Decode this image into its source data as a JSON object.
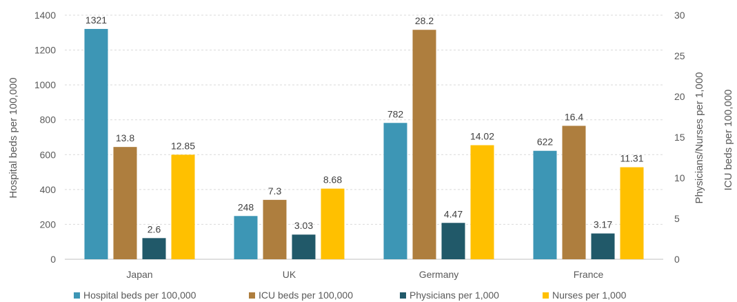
{
  "chart_data": {
    "type": "bar",
    "categories": [
      "Japan",
      "UK",
      "Germany",
      "France"
    ],
    "left_axis": {
      "title": "Hospital beds per 100,000",
      "ylim": [
        0,
        1400
      ],
      "ticks": [
        "0",
        "200",
        "400",
        "600",
        "800",
        "1000",
        "1200",
        "1400"
      ]
    },
    "right_axis": {
      "title": "Physicians/Nurses per 1,000",
      "title2": "ICU beds per 100,000",
      "ylim": [
        0,
        30
      ],
      "ticks": [
        "0",
        "5",
        "10",
        "15",
        "20",
        "25",
        "30"
      ]
    },
    "grid": true,
    "legend_position": "bottom",
    "series": [
      {
        "name": "Hospital beds per 100,000",
        "axis": "left",
        "color": "#3D96B5",
        "values": [
          1321,
          248,
          782,
          622
        ],
        "labels": [
          "1321",
          "248",
          "782",
          "622"
        ]
      },
      {
        "name": "ICU beds per 100,000",
        "axis": "right",
        "color": "#AE7E3E",
        "values": [
          13.8,
          7.3,
          28.2,
          16.4
        ],
        "labels": [
          "13.8",
          "7.3",
          "28.2",
          "16.4"
        ]
      },
      {
        "name": "Physicians per 1,000",
        "axis": "right",
        "color": "#215969",
        "values": [
          2.6,
          3.03,
          4.47,
          3.17
        ],
        "labels": [
          "2.6",
          "3.03",
          "4.47",
          "3.17"
        ]
      },
      {
        "name": "Nurses per 1,000",
        "axis": "right",
        "color": "#FFC000",
        "values": [
          12.85,
          8.68,
          14.02,
          11.31
        ],
        "labels": [
          "12.85",
          "8.68",
          "14.02",
          "11.31"
        ]
      }
    ]
  }
}
